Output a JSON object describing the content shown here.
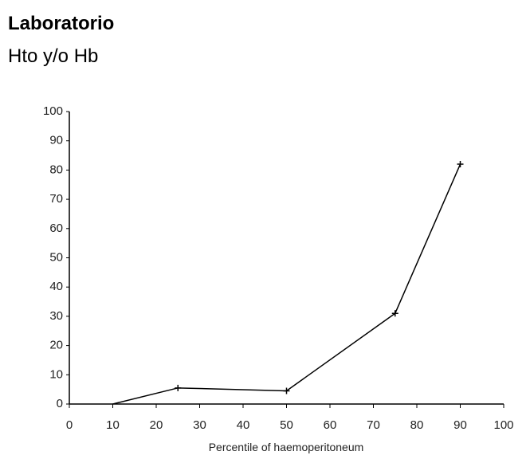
{
  "slide": {
    "title": "Laboratorio",
    "subtitle": "Hto y/o Hb"
  },
  "chart_data": {
    "type": "line",
    "x_label": "Percentile of haemoperitoneum",
    "x": [
      10,
      25,
      50,
      75,
      90
    ],
    "series": [
      {
        "color": "#000000",
        "values": [
          0,
          5.5,
          4.5,
          31,
          82
        ]
      }
    ],
    "xlim": [
      0,
      100
    ],
    "xticks": [
      0,
      10,
      20,
      30,
      40,
      50,
      60,
      70,
      80,
      90,
      100
    ],
    "ylim": [
      0,
      100
    ],
    "yticks": [
      0,
      10,
      20,
      30,
      40,
      50,
      60,
      70,
      80,
      90,
      100
    ]
  }
}
